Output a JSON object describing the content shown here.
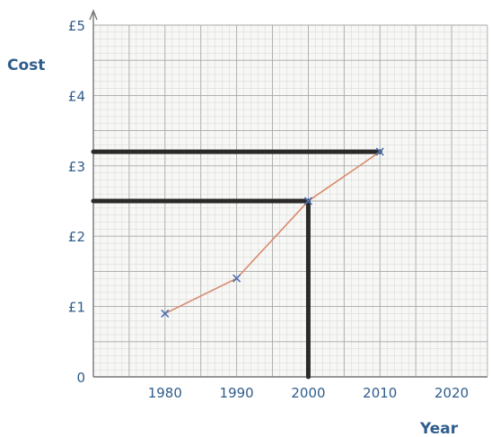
{
  "chart_data": {
    "type": "line",
    "xlabel": "Year",
    "ylabel": "Cost",
    "xlim": [
      1970,
      2025
    ],
    "ylim": [
      0,
      5
    ],
    "x_ticks": [
      "1980",
      "1990",
      "2000",
      "2010",
      "2020"
    ],
    "y_ticks": [
      "0",
      "£1",
      "£2",
      "£3",
      "£4",
      "£5"
    ],
    "grid": true,
    "series": [
      {
        "x": [
          1980,
          1990,
          2000,
          2010
        ],
        "y": [
          0.9,
          1.4,
          2.5,
          3.2
        ],
        "marker": "x",
        "line_color": "#d88a6a",
        "marker_color": "#4a6fb5"
      }
    ],
    "guides": [
      {
        "type": "vertical",
        "x": 2000,
        "from_y": 0,
        "to_y": 2.5
      },
      {
        "type": "horizontal",
        "y": 2.5,
        "from_x": 1970,
        "to_x": 2000
      },
      {
        "type": "horizontal",
        "y": 3.2,
        "from_x": 1970,
        "to_x": 2010
      }
    ],
    "colors": {
      "grid": "#c8c8c8",
      "grid_major": "#a8a8a8",
      "axis": "#777777",
      "text": "#2f5d8c",
      "guide": "#2a2a2a"
    }
  }
}
